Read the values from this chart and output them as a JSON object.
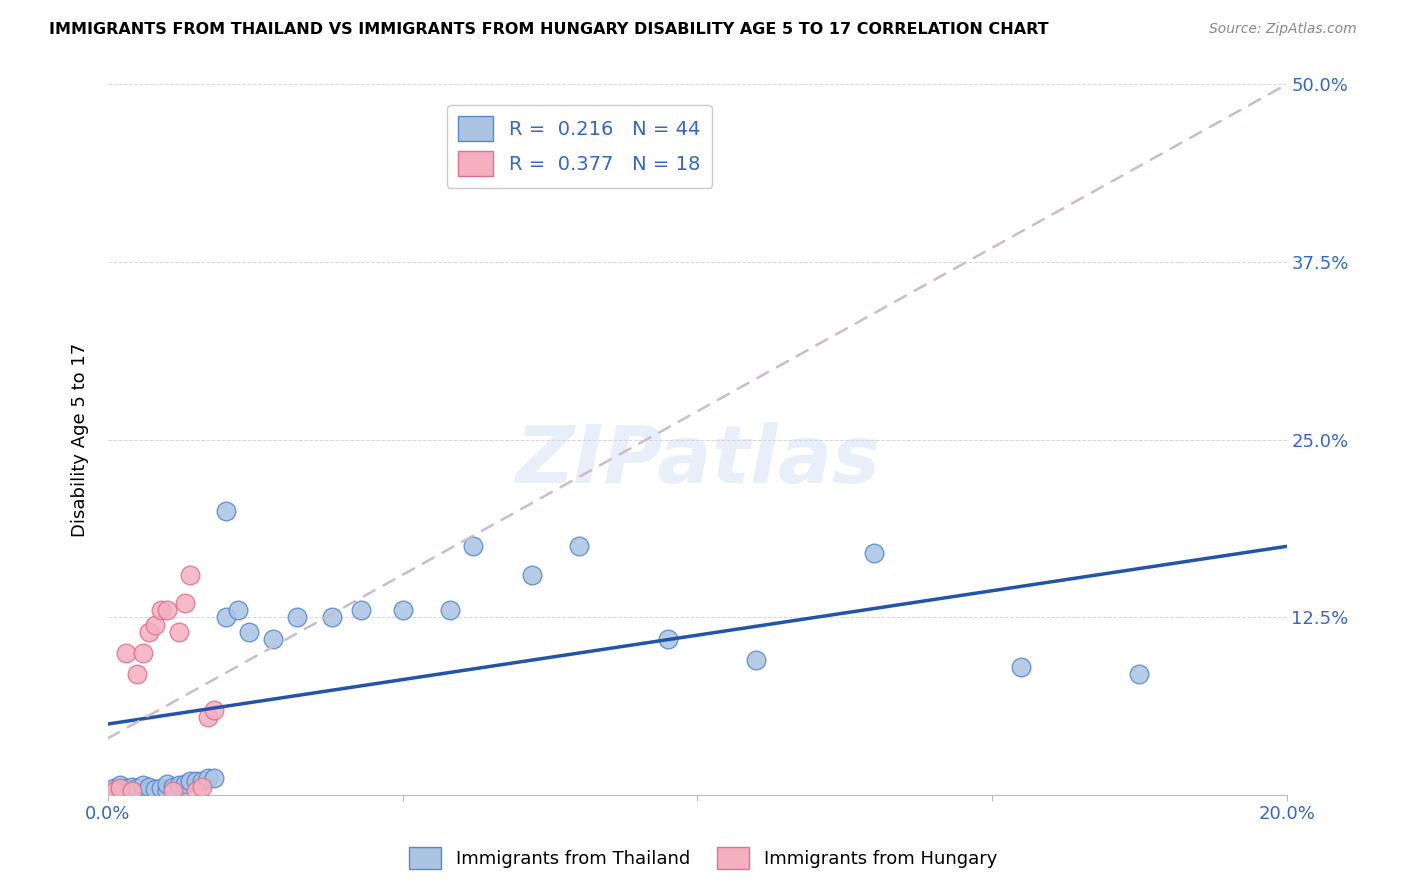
{
  "title": "IMMIGRANTS FROM THAILAND VS IMMIGRANTS FROM HUNGARY DISABILITY AGE 5 TO 17 CORRELATION CHART",
  "source": "Source: ZipAtlas.com",
  "ylabel": "Disability Age 5 to 17",
  "xlim": [
    0.0,
    0.2
  ],
  "ylim": [
    0.0,
    0.5
  ],
  "x_ticks": [
    0.0,
    0.05,
    0.1,
    0.15,
    0.2
  ],
  "x_tick_labels": [
    "0.0%",
    "",
    "",
    "",
    "20.0%"
  ],
  "y_ticks": [
    0.0,
    0.125,
    0.25,
    0.375,
    0.5
  ],
  "y_tick_labels": [
    "",
    "12.5%",
    "25.0%",
    "37.5%",
    "50.0%"
  ],
  "thailand_color": "#aac4e2",
  "hungary_color": "#f5afc0",
  "thailand_edge_color": "#5588cc",
  "hungary_edge_color": "#e07090",
  "thailand_line_color": "#2255aa",
  "hungary_line_color": "#cc3355",
  "thailand_R": 0.216,
  "thailand_N": 44,
  "hungary_R": 0.377,
  "hungary_N": 18,
  "watermark": "ZIPatlas",
  "thailand_scatter_x": [
    0.001,
    0.001,
    0.002,
    0.002,
    0.003,
    0.003,
    0.004,
    0.004,
    0.005,
    0.005,
    0.006,
    0.006,
    0.007,
    0.007,
    0.008,
    0.009,
    0.01,
    0.01,
    0.011,
    0.012,
    0.013,
    0.014,
    0.015,
    0.016,
    0.017,
    0.018,
    0.02,
    0.022,
    0.024,
    0.028,
    0.032,
    0.038,
    0.043,
    0.05,
    0.058,
    0.062,
    0.072,
    0.08,
    0.095,
    0.11,
    0.13,
    0.155,
    0.175,
    0.02
  ],
  "thailand_scatter_y": [
    0.002,
    0.005,
    0.003,
    0.007,
    0.002,
    0.005,
    0.003,
    0.006,
    0.002,
    0.005,
    0.003,
    0.007,
    0.003,
    0.006,
    0.004,
    0.005,
    0.003,
    0.008,
    0.006,
    0.007,
    0.008,
    0.01,
    0.01,
    0.01,
    0.012,
    0.012,
    0.125,
    0.13,
    0.115,
    0.11,
    0.125,
    0.125,
    0.13,
    0.13,
    0.13,
    0.175,
    0.155,
    0.175,
    0.11,
    0.095,
    0.17,
    0.09,
    0.085,
    0.2
  ],
  "hungary_scatter_x": [
    0.001,
    0.002,
    0.003,
    0.004,
    0.005,
    0.006,
    0.007,
    0.008,
    0.009,
    0.01,
    0.011,
    0.012,
    0.013,
    0.014,
    0.015,
    0.016,
    0.017,
    0.018
  ],
  "hungary_scatter_y": [
    0.003,
    0.005,
    0.1,
    0.003,
    0.085,
    0.1,
    0.115,
    0.12,
    0.13,
    0.13,
    0.003,
    0.115,
    0.135,
    0.155,
    0.003,
    0.006,
    0.055,
    0.06
  ],
  "thailand_line_x": [
    0.0,
    0.2
  ],
  "thailand_line_y": [
    0.05,
    0.175
  ],
  "hungary_line_x": [
    0.0,
    0.2
  ],
  "hungary_line_y": [
    0.04,
    0.5
  ]
}
